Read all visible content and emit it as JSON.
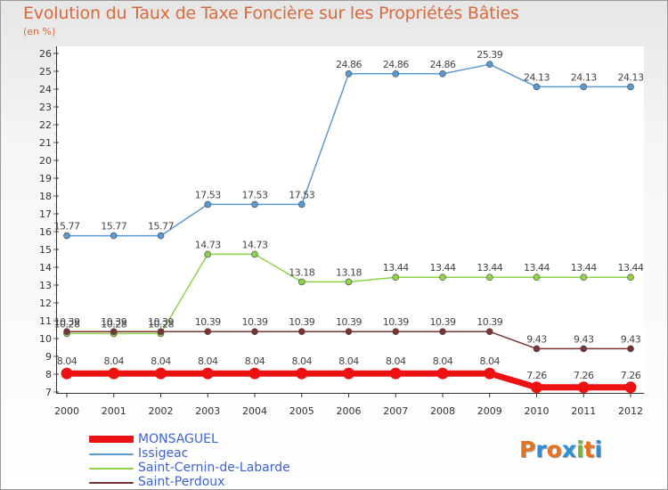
{
  "title": "Evolution du Taux de Taxe Foncière sur les Propriétés Bâties",
  "subtitle": "(en %)",
  "logo": {
    "text": "Proxiti",
    "letters": [
      "P",
      "r",
      "o",
      "x",
      "i",
      "t",
      "i"
    ],
    "colors": [
      "#e8731e",
      "#2e8fd6",
      "#e8731e",
      "#2e8fd6",
      "#74b53a",
      "#e8731e",
      "#2e8fd6"
    ]
  },
  "chart_data": {
    "type": "line",
    "x": [
      "2000",
      "2001",
      "2002",
      "2003",
      "2004",
      "2005",
      "2006",
      "2007",
      "2008",
      "2009",
      "2010",
      "2011",
      "2012"
    ],
    "ylim": [
      7,
      26
    ],
    "yticks": [
      "7",
      "8",
      "9",
      "10",
      "11",
      "12",
      "13",
      "14",
      "15",
      "16",
      "17",
      "18",
      "19",
      "20",
      "21",
      "22",
      "23",
      "24",
      "25",
      "26"
    ],
    "grid": false,
    "series": [
      {
        "name": "MONSAGUEL",
        "color": "#ee1111",
        "values": [
          8.04,
          8.04,
          8.04,
          8.04,
          8.04,
          8.04,
          8.04,
          8.04,
          8.04,
          8.04,
          7.26,
          7.26,
          7.26
        ],
        "labels": [
          "8.04",
          "8.04",
          "8.04",
          "8.04",
          "8.04",
          "8.04",
          "8.04",
          "8.04",
          "8.04",
          "8.04",
          "7.26",
          "7.26",
          "7.26"
        ]
      },
      {
        "name": "Issigeac",
        "color": "#5a9ad2",
        "values": [
          15.77,
          15.77,
          15.77,
          17.53,
          17.53,
          17.53,
          24.86,
          24.86,
          24.86,
          25.39,
          24.13,
          24.13,
          24.13
        ],
        "labels": [
          "15.77",
          "15.77",
          "15.77",
          "17.53",
          "17.53",
          "17.53",
          "24.86",
          "24.86",
          "24.86",
          "25.39",
          "24.13",
          "24.13",
          "24.13"
        ]
      },
      {
        "name": "Saint-Cernin-de-Labarde",
        "color": "#8fd34a",
        "values": [
          10.28,
          10.28,
          10.28,
          14.73,
          14.73,
          13.18,
          13.18,
          13.44,
          13.44,
          13.44,
          13.44,
          13.44,
          13.44
        ],
        "labels": [
          "10.28",
          "10.28",
          "10.28",
          "14.73",
          "14.73",
          "13.18",
          "13.18",
          "13.44",
          "13.44",
          "13.44",
          "13.44",
          "13.44",
          "13.44"
        ]
      },
      {
        "name": "Saint-Perdoux",
        "color": "#7a3333",
        "values": [
          10.39,
          10.39,
          10.39,
          10.39,
          10.39,
          10.39,
          10.39,
          10.39,
          10.39,
          10.39,
          9.43,
          9.43,
          9.43
        ],
        "labels": [
          "10.39",
          "10.39",
          "10.39",
          "10.39",
          "10.39",
          "10.39",
          "10.39",
          "10.39",
          "10.39",
          "10.39",
          "9.43",
          "9.43",
          "9.43"
        ]
      }
    ]
  }
}
